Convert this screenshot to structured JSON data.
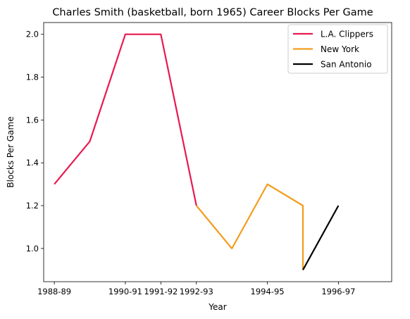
{
  "chart_data": {
    "type": "line",
    "title": "Charles Smith (basketball, born 1965) Career Blocks Per Game",
    "xlabel": "Year",
    "ylabel": "Blocks Per Game",
    "x_tick_labels": [
      "1988-89",
      "1990-91",
      "1991-92",
      "1992-93",
      "1994-95",
      "1996-97"
    ],
    "y_tick_labels": [
      "1.0",
      "1.2",
      "1.4",
      "1.6",
      "1.8",
      "2.0"
    ],
    "y_ticks": [
      1.0,
      1.2,
      1.4,
      1.6,
      1.8,
      2.0
    ],
    "ylim": [
      0.845,
      2.055
    ],
    "legend_position": "top-right",
    "grid": false,
    "series": [
      {
        "name": "L.A. Clippers",
        "color": "#e8194f",
        "x": [
          "1988-89",
          "1989-90",
          "1990-91",
          "1991-92",
          "1992-93"
        ],
        "values": [
          1.3,
          1.5,
          2.0,
          2.0,
          1.2
        ]
      },
      {
        "name": "New York",
        "color": "#f39c1d",
        "x": [
          "1992-93",
          "1993-94",
          "1994-95",
          "1995-96",
          "1995-96"
        ],
        "values": [
          1.2,
          1.0,
          1.3,
          1.2,
          0.9
        ]
      },
      {
        "name": "San Antonio",
        "color": "#000000",
        "x": [
          "1995-96",
          "1996-97"
        ],
        "values": [
          0.9,
          1.2
        ]
      }
    ]
  }
}
